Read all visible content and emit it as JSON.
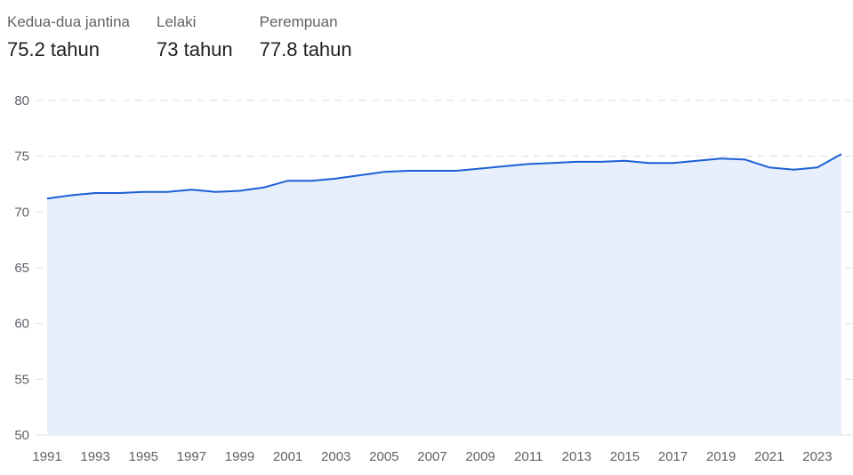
{
  "summary": [
    {
      "label": "Kedua-dua jantina",
      "value": "75.2 tahun"
    },
    {
      "label": "Lelaki",
      "value": "73 tahun"
    },
    {
      "label": "Perempuan",
      "value": "77.8 tahun"
    }
  ],
  "chart_data": {
    "type": "area",
    "title": "",
    "xlabel": "",
    "ylabel": "",
    "ylim": [
      50,
      80
    ],
    "y_ticks": [
      50,
      55,
      60,
      65,
      70,
      75,
      80
    ],
    "x_ticks": [
      1991,
      1993,
      1995,
      1997,
      1999,
      2001,
      2003,
      2005,
      2007,
      2009,
      2011,
      2013,
      2015,
      2017,
      2019,
      2021,
      2023
    ],
    "grid": true,
    "colors": {
      "line": "#1a5fd6",
      "fill": "#e8effc",
      "grid": "#dadce0"
    },
    "series": [
      {
        "x": [
          1991,
          1992,
          1993,
          1994,
          1995,
          1996,
          1997,
          1998,
          1999,
          2000,
          2001,
          2002,
          2003,
          2004,
          2005,
          2006,
          2007,
          2008,
          2009,
          2010,
          2011,
          2012,
          2013,
          2014,
          2015,
          2016,
          2017,
          2018,
          2019,
          2020,
          2021,
          2022,
          2023,
          2024
        ],
        "values": [
          71.2,
          71.5,
          71.7,
          71.7,
          71.8,
          71.8,
          72.0,
          71.8,
          71.9,
          72.2,
          72.8,
          72.8,
          73.0,
          73.3,
          73.6,
          73.7,
          73.7,
          73.7,
          73.9,
          74.1,
          74.3,
          74.4,
          74.5,
          74.5,
          74.6,
          74.4,
          74.4,
          74.6,
          74.8,
          74.7,
          74.0,
          73.8,
          74.0,
          75.2
        ]
      }
    ]
  }
}
